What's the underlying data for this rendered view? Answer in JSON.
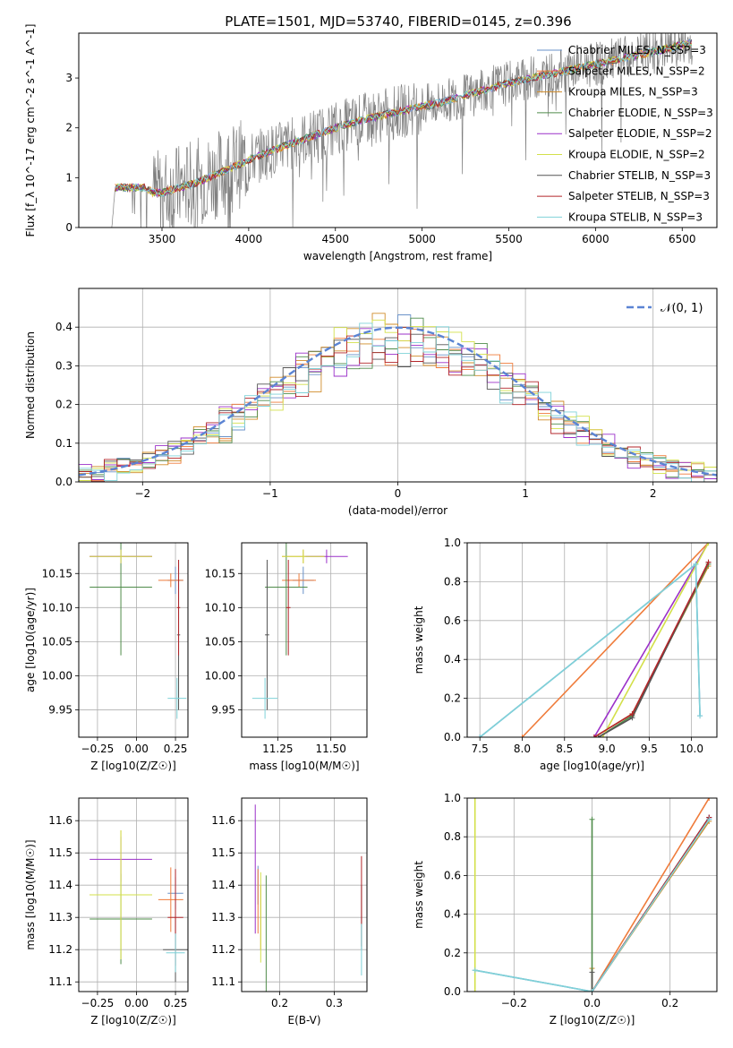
{
  "figure_title": "PLATE=1501, MJD=53740, FIBERID=0145, z=0.396",
  "colors": [
    "#6a92c9",
    "#ef7b3a",
    "#d08c2a",
    "#4f8c4a",
    "#9b30c9",
    "#d3e04a",
    "#555555",
    "#b3262a",
    "#7fd2d8"
  ],
  "legend_text_color": "#000000",
  "chart_data": [
    {
      "id": "spectrum",
      "type": "line",
      "xlabel": "wavelength [Angstrom, rest frame]",
      "ylabel": "Flux [f_λ 10^-17 erg cm^-2 s^-1 A^-1]",
      "xlim": [
        3020,
        6700
      ],
      "ylim": [
        0,
        3.9
      ],
      "xticks": [
        3500,
        4000,
        4500,
        5000,
        5500,
        6000,
        6500
      ],
      "yticks": [
        0,
        1,
        2,
        3
      ],
      "grid": false,
      "legend_position": "upper-right",
      "data_color": "#808080",
      "data_anchors_x": [
        3210,
        3230,
        3400,
        3450,
        3500,
        3700,
        3900,
        4100,
        4300,
        4500,
        4700,
        4900,
        5100,
        5300,
        5500,
        5700,
        5900,
        6100,
        6300,
        6550
      ],
      "data_anchors_y": [
        0.0,
        0.8,
        0.8,
        0.7,
        0.7,
        0.9,
        1.2,
        1.5,
        1.75,
        2.0,
        2.2,
        2.35,
        2.5,
        2.7,
        2.9,
        3.05,
        3.2,
        3.35,
        3.5,
        3.7
      ],
      "series": [
        {
          "name": "Chabrier MILES, N_SSP=3",
          "color_index": 0
        },
        {
          "name": "Salpeter MILES, N_SSP=2",
          "color_index": 1
        },
        {
          "name": "Kroupa MILES, N_SSP=3",
          "color_index": 2
        },
        {
          "name": "Chabrier ELODIE, N_SSP=3",
          "color_index": 3
        },
        {
          "name": "Salpeter ELODIE, N_SSP=2",
          "color_index": 4
        },
        {
          "name": "Kroupa ELODIE, N_SSP=2",
          "color_index": 5
        },
        {
          "name": "Chabrier STELIB, N_SSP=3",
          "color_index": 6
        },
        {
          "name": "Salpeter STELIB, N_SSP=3",
          "color_index": 7
        },
        {
          "name": "Kroupa STELIB, N_SSP=3",
          "color_index": 8
        }
      ]
    },
    {
      "id": "residuals",
      "type": "histogram",
      "xlabel": "(data-model)/error",
      "ylabel": "Normed distribution",
      "xlim": [
        -2.5,
        2.5
      ],
      "ylim": [
        0,
        0.5
      ],
      "xticks": [
        -2,
        -1,
        0,
        1,
        2
      ],
      "yticks": [
        0.0,
        0.1,
        0.2,
        0.3,
        0.4
      ],
      "grid": true,
      "legend_position": "upper-right",
      "gaussian_label": "𝒩(0, 1)",
      "gaussian_color": "#5b84d3",
      "bin_width": 0.1
    },
    {
      "id": "age_vs_Z",
      "type": "error-bars",
      "xlabel": "Z [log10(Z/Z☉)]",
      "ylabel": "age  [log10(age/yr)]",
      "xlim": [
        -0.37,
        0.33
      ],
      "ylim": [
        9.91,
        10.195
      ],
      "xticks": [
        -0.25,
        0.0,
        0.25
      ],
      "yticks": [
        9.95,
        10.0,
        10.05,
        10.1,
        10.15
      ],
      "grid": true,
      "points": [
        {
          "x": 0.25,
          "y": 10.14,
          "xerr": 0.05,
          "yerr": 0.02,
          "color_index": 0
        },
        {
          "x": 0.22,
          "y": 10.14,
          "xerr": 0.08,
          "yerr": 0.01,
          "color_index": 1
        },
        {
          "x": -0.1,
          "y": 10.175,
          "xerr": 0.2,
          "yerr": 0.01,
          "color_index": 2
        },
        {
          "x": -0.1,
          "y": 10.13,
          "xerr": 0.2,
          "yerr": 0.1,
          "color_index": 3
        },
        {
          "x": -0.1,
          "y": 10.175,
          "xerr": 0.2,
          "yerr": 0.01,
          "color_index": 4
        },
        {
          "x": -0.1,
          "y": 10.175,
          "xerr": 0.2,
          "yerr": 0.01,
          "color_index": 5
        },
        {
          "x": 0.27,
          "y": 10.06,
          "xerr": 0.01,
          "yerr": 0.11,
          "color_index": 6
        },
        {
          "x": 0.27,
          "y": 10.1,
          "xerr": 0.01,
          "yerr": 0.07,
          "color_index": 7
        },
        {
          "x": 0.26,
          "y": 9.967,
          "xerr": 0.06,
          "yerr": 0.03,
          "color_index": 8
        }
      ]
    },
    {
      "id": "age_vs_mass",
      "type": "error-bars",
      "xlabel": "mass [log10(M/M☉)]",
      "ylabel": "",
      "xlim": [
        11.08,
        11.67
      ],
      "ylim": [
        9.91,
        10.195
      ],
      "xticks": [
        11.25,
        11.5
      ],
      "yticks": [
        9.95,
        10.0,
        10.05,
        10.1,
        10.15
      ],
      "grid": true,
      "points": [
        {
          "x": 11.37,
          "y": 10.14,
          "xerr": 0.05,
          "yerr": 0.02,
          "color_index": 0
        },
        {
          "x": 11.35,
          "y": 10.14,
          "xerr": 0.08,
          "yerr": 0.01,
          "color_index": 1
        },
        {
          "x": 11.37,
          "y": 10.175,
          "xerr": 0.1,
          "yerr": 0.01,
          "color_index": 2
        },
        {
          "x": 11.29,
          "y": 10.13,
          "xerr": 0.1,
          "yerr": 0.1,
          "color_index": 3
        },
        {
          "x": 11.48,
          "y": 10.175,
          "xerr": 0.1,
          "yerr": 0.01,
          "color_index": 4
        },
        {
          "x": 11.37,
          "y": 10.175,
          "xerr": 0.1,
          "yerr": 0.01,
          "color_index": 5
        },
        {
          "x": 11.2,
          "y": 10.06,
          "xerr": 0.01,
          "yerr": 0.11,
          "color_index": 6
        },
        {
          "x": 11.3,
          "y": 10.1,
          "xerr": 0.01,
          "yerr": 0.07,
          "color_index": 7
        },
        {
          "x": 11.19,
          "y": 9.967,
          "xerr": 0.06,
          "yerr": 0.03,
          "color_index": 8
        }
      ]
    },
    {
      "id": "weight_vs_age",
      "type": "line",
      "xlabel": "age  [log10(age/yr)]",
      "ylabel": "mass weight",
      "xlim": [
        7.35,
        10.3
      ],
      "ylim": [
        0,
        1
      ],
      "xticks": [
        7.5,
        8.0,
        8.5,
        9.0,
        9.5,
        10.0
      ],
      "yticks": [
        0.0,
        0.2,
        0.4,
        0.6,
        0.8,
        1.0
      ],
      "grid": true,
      "series": [
        {
          "color_index": 0,
          "x": [
            7.5,
            10.05,
            10.1
          ],
          "y": [
            0.0,
            0.89,
            0.11
          ]
        },
        {
          "color_index": 1,
          "x": [
            8.0,
            10.2
          ],
          "y": [
            0.0,
            1.0
          ]
        },
        {
          "color_index": 2,
          "x": [
            8.85,
            9.3,
            10.2
          ],
          "y": [
            0.0,
            0.12,
            0.88
          ]
        },
        {
          "color_index": 3,
          "x": [
            8.9,
            9.3,
            10.2
          ],
          "y": [
            0.0,
            0.11,
            0.89
          ]
        },
        {
          "color_index": 4,
          "x": [
            8.85,
            10.2
          ],
          "y": [
            0.0,
            1.0
          ]
        },
        {
          "color_index": 5,
          "x": [
            8.95,
            10.2
          ],
          "y": [
            0.0,
            1.0
          ]
        },
        {
          "color_index": 6,
          "x": [
            8.9,
            9.3,
            10.2
          ],
          "y": [
            0.0,
            0.1,
            0.9
          ]
        },
        {
          "color_index": 7,
          "x": [
            8.85,
            9.3,
            10.2
          ],
          "y": [
            0.0,
            0.12,
            0.9
          ]
        },
        {
          "color_index": 8,
          "x": [
            7.5,
            10.05,
            10.1
          ],
          "y": [
            0.0,
            0.89,
            0.11
          ]
        }
      ]
    },
    {
      "id": "mass_vs_Z",
      "type": "error-bars",
      "xlabel": "Z [log10(Z/Z☉)]",
      "ylabel": "mass [log10(M/M☉)]",
      "xlim": [
        -0.37,
        0.33
      ],
      "ylim": [
        11.07,
        11.67
      ],
      "xticks": [
        -0.25,
        0.0,
        0.25
      ],
      "yticks": [
        11.1,
        11.2,
        11.3,
        11.4,
        11.5,
        11.6
      ],
      "grid": true,
      "points": [
        {
          "x": 0.25,
          "y": 11.375,
          "xerr": 0.05,
          "yerr": 0.05,
          "color_index": 0
        },
        {
          "x": 0.22,
          "y": 11.355,
          "xerr": 0.08,
          "yerr": 0.1,
          "color_index": 1
        },
        {
          "x": -0.1,
          "y": 11.37,
          "xerr": 0.2,
          "yerr": 0.2,
          "color_index": 2
        },
        {
          "x": -0.1,
          "y": 11.295,
          "xerr": 0.2,
          "yerr": 0.14,
          "color_index": 3
        },
        {
          "x": -0.1,
          "y": 11.48,
          "xerr": 0.2,
          "yerr": 0.07,
          "color_index": 4
        },
        {
          "x": -0.1,
          "y": 11.37,
          "xerr": 0.2,
          "yerr": 0.2,
          "color_index": 5
        },
        {
          "x": 0.25,
          "y": 11.2,
          "xerr": 0.08,
          "yerr": 0.1,
          "color_index": 6
        },
        {
          "x": 0.25,
          "y": 11.3,
          "xerr": 0.05,
          "yerr": 0.15,
          "color_index": 7
        },
        {
          "x": 0.25,
          "y": 11.19,
          "xerr": 0.06,
          "yerr": 0.06,
          "color_index": 8
        }
      ]
    },
    {
      "id": "mass_vs_ebv",
      "type": "error-bars",
      "xlabel": "E(B-V)",
      "ylabel": "",
      "xlim": [
        0.13,
        0.36
      ],
      "ylim": [
        11.07,
        11.67
      ],
      "xticks": [
        0.2,
        0.3
      ],
      "yticks": [
        11.1,
        11.2,
        11.3,
        11.4,
        11.5,
        11.6
      ],
      "grid": true,
      "points": [
        {
          "x": 0.16,
          "y": 11.4,
          "xerr": 0.0,
          "yerr": 0.06,
          "color_index": 0
        },
        {
          "x": 0.16,
          "y": 11.35,
          "xerr": 0.0,
          "yerr": 0.1,
          "color_index": 1
        },
        {
          "x": 0.165,
          "y": 11.3,
          "xerr": 0.0,
          "yerr": 0.1,
          "color_index": 2
        },
        {
          "x": 0.175,
          "y": 11.25,
          "xerr": 0.0,
          "yerr": 0.18,
          "color_index": 3
        },
        {
          "x": 0.155,
          "y": 11.45,
          "xerr": 0.0,
          "yerr": 0.2,
          "color_index": 4
        },
        {
          "x": 0.165,
          "y": 11.3,
          "xerr": 0.0,
          "yerr": 0.14,
          "color_index": 5
        },
        {
          "x": 0.35,
          "y": 11.3,
          "xerr": 0.0,
          "yerr": 0.1,
          "color_index": 6
        },
        {
          "x": 0.35,
          "y": 11.35,
          "xerr": 0.0,
          "yerr": 0.14,
          "color_index": 7
        },
        {
          "x": 0.35,
          "y": 11.2,
          "xerr": 0.0,
          "yerr": 0.08,
          "color_index": 8
        }
      ]
    },
    {
      "id": "weight_vs_Z",
      "type": "line",
      "xlabel": "Z [log10(Z/Z☉)]",
      "ylabel": "mass weight",
      "xlim": [
        -0.32,
        0.32
      ],
      "ylim": [
        0,
        1
      ],
      "xticks": [
        -0.2,
        0.0,
        0.2
      ],
      "yticks": [
        0.0,
        0.2,
        0.4,
        0.6,
        0.8,
        1.0
      ],
      "grid": true,
      "series": [
        {
          "color_index": 0,
          "x": [
            -0.3,
            0.0,
            0.3
          ],
          "y": [
            0.11,
            0.0,
            0.89
          ]
        },
        {
          "color_index": 1,
          "x": [
            0.0,
            0.3
          ],
          "y": [
            0.0,
            1.0
          ]
        },
        {
          "color_index": 2,
          "x": [
            0.0,
            0.0,
            0.3
          ],
          "y": [
            0.12,
            0.0,
            0.88
          ]
        },
        {
          "color_index": 3,
          "x": [
            0.0,
            0.0
          ],
          "y": [
            0.89,
            0.0
          ]
        },
        {
          "color_index": 4,
          "x": [
            0.0,
            0.3
          ],
          "y": [
            0.0,
            0.9
          ]
        },
        {
          "color_index": 5,
          "x": [
            -0.3,
            -0.3
          ],
          "y": [
            0.0,
            1.0
          ]
        },
        {
          "color_index": 6,
          "x": [
            0.0,
            0.0,
            0.3
          ],
          "y": [
            0.1,
            0.0,
            0.9
          ]
        },
        {
          "color_index": 7,
          "x": [
            0.0,
            0.3
          ],
          "y": [
            0.0,
            0.9
          ]
        },
        {
          "color_index": 8,
          "x": [
            -0.3,
            0.0,
            0.3
          ],
          "y": [
            0.11,
            0.0,
            0.89
          ]
        }
      ]
    }
  ]
}
